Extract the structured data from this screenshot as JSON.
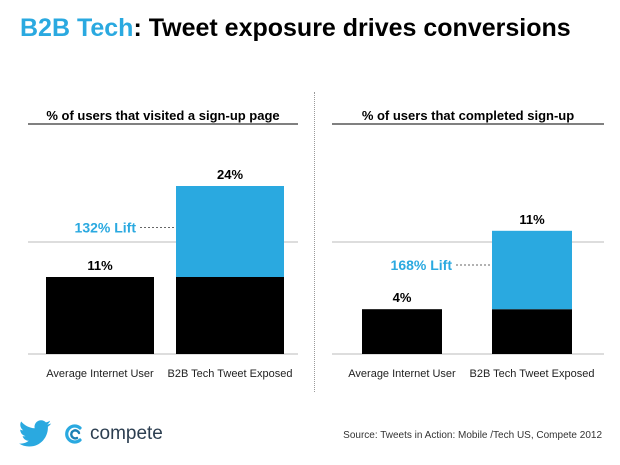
{
  "title": {
    "highlight": "B2B Tech",
    "rest": ": Tweet exposure drives conversions"
  },
  "colors": {
    "accent": "#2aa9e0",
    "bar": "#000000",
    "lift": "#2aa9e0"
  },
  "chart_data": [
    {
      "type": "bar",
      "title": "% of users that visited a sign-up page",
      "categories": [
        "Average Internet User",
        "B2B Tech Tweet Exposed"
      ],
      "values": [
        11,
        24
      ],
      "value_labels": [
        "11%",
        "24%"
      ],
      "base": 11,
      "annotation": "132% Lift",
      "ylim": [
        0,
        26
      ]
    },
    {
      "type": "bar",
      "title": "% of users that completed sign-up",
      "categories": [
        "Average Internet User",
        "B2B Tech Tweet Exposed"
      ],
      "values": [
        4,
        11
      ],
      "value_labels": [
        "4%",
        "11%"
      ],
      "base": 4,
      "annotation": "168% Lift",
      "ylim": [
        0,
        12.5
      ]
    }
  ],
  "footer": {
    "brand": "compete",
    "source": "Source: Tweets in Action: Mobile /Tech US, Compete 2012"
  },
  "icons": {
    "twitter": "twitter-bird-icon",
    "compete": "compete-logo-icon"
  }
}
